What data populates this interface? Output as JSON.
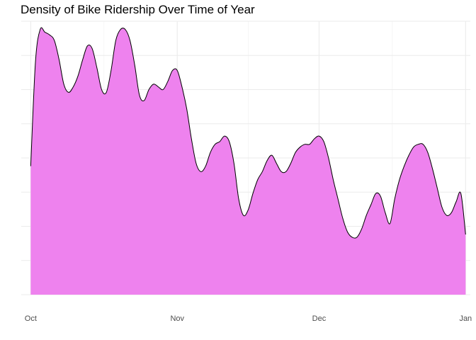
{
  "chart_data": {
    "type": "area",
    "title": "Density of Bike Ridership Over Time of Year",
    "xlabel": "",
    "ylabel": "",
    "x_ticks": [
      "Oct",
      "Nov",
      "Dec",
      "Jan"
    ],
    "x_tick_dates": [
      "2023-10-01",
      "2023-11-01",
      "2023-12-01",
      "2024-01-01"
    ],
    "xlim": [
      "2023-09-29",
      "2024-01-02"
    ],
    "ylim": [
      0,
      1
    ],
    "grid": true,
    "fill_color": "#EE82EE",
    "line_color": "#000000",
    "x": [
      "2023-10-01",
      "2023-10-02",
      "2023-10-03",
      "2023-10-04",
      "2023-10-05",
      "2023-10-06",
      "2023-10-07",
      "2023-10-08",
      "2023-10-09",
      "2023-10-10",
      "2023-10-11",
      "2023-10-12",
      "2023-10-13",
      "2023-10-14",
      "2023-10-15",
      "2023-10-16",
      "2023-10-17",
      "2023-10-18",
      "2023-10-19",
      "2023-10-20",
      "2023-10-21",
      "2023-10-22",
      "2023-10-23",
      "2023-10-24",
      "2023-10-25",
      "2023-10-26",
      "2023-10-27",
      "2023-10-28",
      "2023-10-29",
      "2023-10-30",
      "2023-10-31",
      "2023-11-01",
      "2023-11-02",
      "2023-11-03",
      "2023-11-04",
      "2023-11-05",
      "2023-11-06",
      "2023-11-07",
      "2023-11-08",
      "2023-11-09",
      "2023-11-10",
      "2023-11-11",
      "2023-11-12",
      "2023-11-13",
      "2023-11-14",
      "2023-11-15",
      "2023-11-16",
      "2023-11-17",
      "2023-11-18",
      "2023-11-19",
      "2023-11-20",
      "2023-11-21",
      "2023-11-22",
      "2023-11-23",
      "2023-11-24",
      "2023-11-25",
      "2023-11-26",
      "2023-11-27",
      "2023-11-28",
      "2023-11-29",
      "2023-11-30",
      "2023-12-01",
      "2023-12-02",
      "2023-12-03",
      "2023-12-04",
      "2023-12-05",
      "2023-12-06",
      "2023-12-07",
      "2023-12-08",
      "2023-12-09",
      "2023-12-10",
      "2023-12-11",
      "2023-12-12",
      "2023-12-13",
      "2023-12-14",
      "2023-12-15",
      "2023-12-16",
      "2023-12-17",
      "2023-12-18",
      "2023-12-19",
      "2023-12-20",
      "2023-12-21",
      "2023-12-22",
      "2023-12-23",
      "2023-12-24",
      "2023-12-25",
      "2023-12-26",
      "2023-12-27",
      "2023-12-28",
      "2023-12-29",
      "2023-12-30",
      "2023-12-31",
      "2024-01-01"
    ],
    "y": [
      0.47,
      0.85,
      0.97,
      0.96,
      0.95,
      0.93,
      0.86,
      0.77,
      0.74,
      0.76,
      0.8,
      0.86,
      0.91,
      0.9,
      0.83,
      0.75,
      0.74,
      0.82,
      0.93,
      0.97,
      0.97,
      0.93,
      0.84,
      0.73,
      0.71,
      0.75,
      0.77,
      0.76,
      0.75,
      0.78,
      0.82,
      0.82,
      0.76,
      0.68,
      0.57,
      0.48,
      0.45,
      0.47,
      0.52,
      0.55,
      0.56,
      0.58,
      0.56,
      0.48,
      0.35,
      0.29,
      0.31,
      0.37,
      0.42,
      0.45,
      0.49,
      0.51,
      0.48,
      0.45,
      0.45,
      0.48,
      0.52,
      0.54,
      0.55,
      0.55,
      0.57,
      0.58,
      0.56,
      0.5,
      0.42,
      0.35,
      0.28,
      0.23,
      0.21,
      0.21,
      0.24,
      0.29,
      0.33,
      0.37,
      0.36,
      0.3,
      0.26,
      0.35,
      0.42,
      0.47,
      0.51,
      0.54,
      0.55,
      0.55,
      0.52,
      0.46,
      0.39,
      0.32,
      0.29,
      0.3,
      0.34,
      0.37,
      0.22
    ]
  }
}
